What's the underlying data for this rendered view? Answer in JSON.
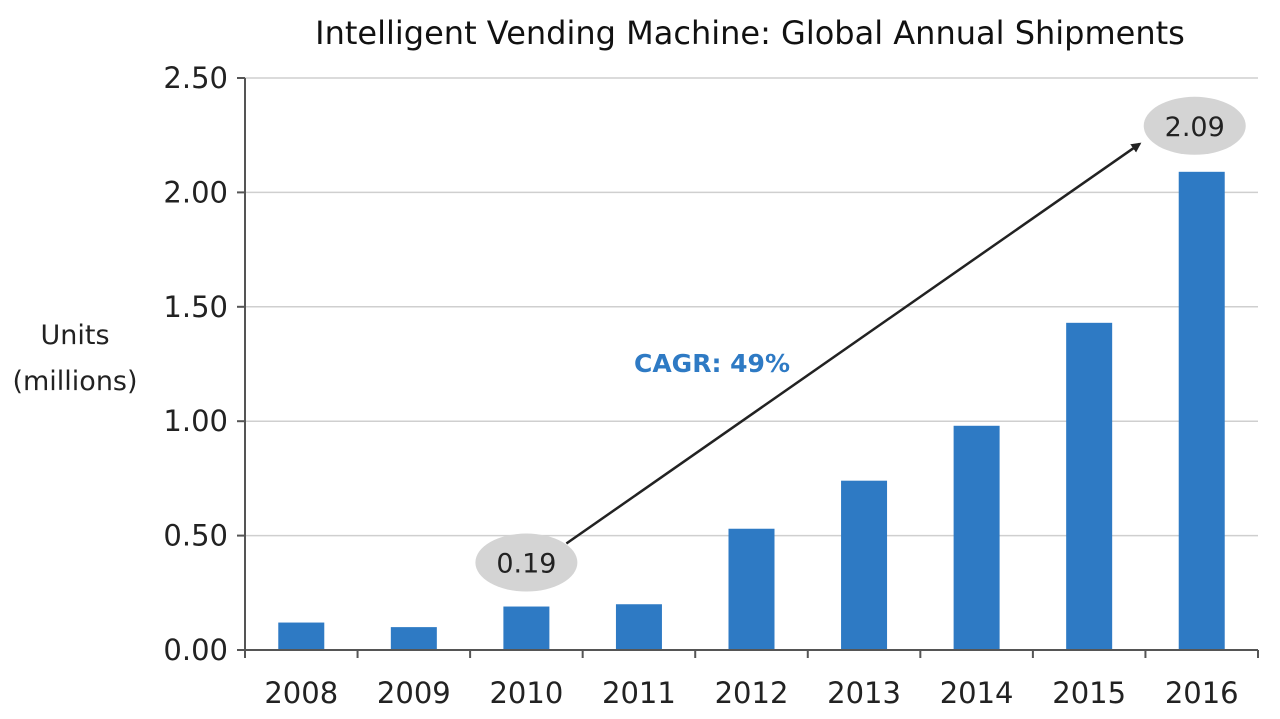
{
  "chart_data": {
    "type": "bar",
    "title": "Intelligent Vending Machine: Global Annual Shipments",
    "ylabel_lines": [
      "Units",
      "(millions)"
    ],
    "xlabel": "",
    "categories": [
      "2008",
      "2009",
      "2010",
      "2011",
      "2012",
      "2013",
      "2014",
      "2015",
      "2016"
    ],
    "values": [
      0.12,
      0.1,
      0.19,
      0.2,
      0.53,
      0.74,
      0.98,
      1.43,
      2.09
    ],
    "ylim": [
      0,
      2.5
    ],
    "yticks": [
      "0.00",
      "0.50",
      "1.00",
      "1.50",
      "2.00",
      "2.50"
    ],
    "grid": true,
    "bar_color": "#2e7ac4",
    "annotations": [
      {
        "text": "0.19",
        "category": "2010",
        "value": 0.19
      },
      {
        "text": "2.09",
        "category": "2016",
        "value": 2.09
      }
    ],
    "trend_label": "CAGR: 49%"
  }
}
